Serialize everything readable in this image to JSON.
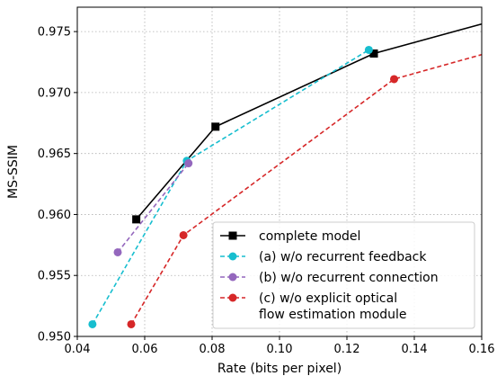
{
  "chart_data": {
    "type": "line",
    "xlabel": "Rate (bits per pixel)",
    "ylabel": "MS-SSIM",
    "xlim": [
      0.04,
      0.16
    ],
    "ylim": [
      0.95,
      0.977
    ],
    "xticks": [
      0.04,
      0.06,
      0.08,
      0.1,
      0.12,
      0.14,
      0.16
    ],
    "xtick_labels": [
      "0.04",
      "0.06",
      "0.08",
      "0.10",
      "0.12",
      "0.14",
      "0.16"
    ],
    "yticks": [
      0.95,
      0.955,
      0.96,
      0.965,
      0.97,
      0.975
    ],
    "ytick_labels": [
      "0.950",
      "0.955",
      "0.960",
      "0.965",
      "0.970",
      "0.975"
    ],
    "grid": true,
    "legend_position": "bottom-right",
    "series": [
      {
        "name": "complete model",
        "color": "#000000",
        "line_style": "solid",
        "marker": "square",
        "points": [
          [
            0.0575,
            0.9596
          ],
          [
            0.081,
            0.9672
          ],
          [
            0.128,
            0.9732
          ],
          [
            0.165,
            0.976
          ]
        ],
        "markers_at": [
          0,
          1,
          2
        ]
      },
      {
        "name": "(a) w/o recurrent feedback",
        "color": "#17becf",
        "line_style": "dashed",
        "marker": "circle",
        "points": [
          [
            0.0445,
            0.951
          ],
          [
            0.0725,
            0.9644
          ],
          [
            0.1265,
            0.9735
          ]
        ],
        "markers_at": [
          0,
          1,
          2
        ]
      },
      {
        "name": "(b) w/o recurrent connection",
        "color": "#9467bd",
        "line_style": "dashed",
        "marker": "circle",
        "points": [
          [
            0.052,
            0.9569
          ],
          [
            0.073,
            0.9642
          ]
        ],
        "markers_at": [
          0,
          1
        ]
      },
      {
        "name": "(c) w/o explicit optical flow estimation module",
        "legend_lines": [
          "(c) w/o explicit optical",
          "flow estimation module"
        ],
        "color": "#d62728",
        "line_style": "dashed",
        "marker": "circle",
        "points": [
          [
            0.056,
            0.951
          ],
          [
            0.0715,
            0.9583
          ],
          [
            0.134,
            0.9711
          ],
          [
            0.165,
            0.9735
          ]
        ],
        "markers_at": [
          0,
          1,
          2
        ]
      }
    ]
  }
}
